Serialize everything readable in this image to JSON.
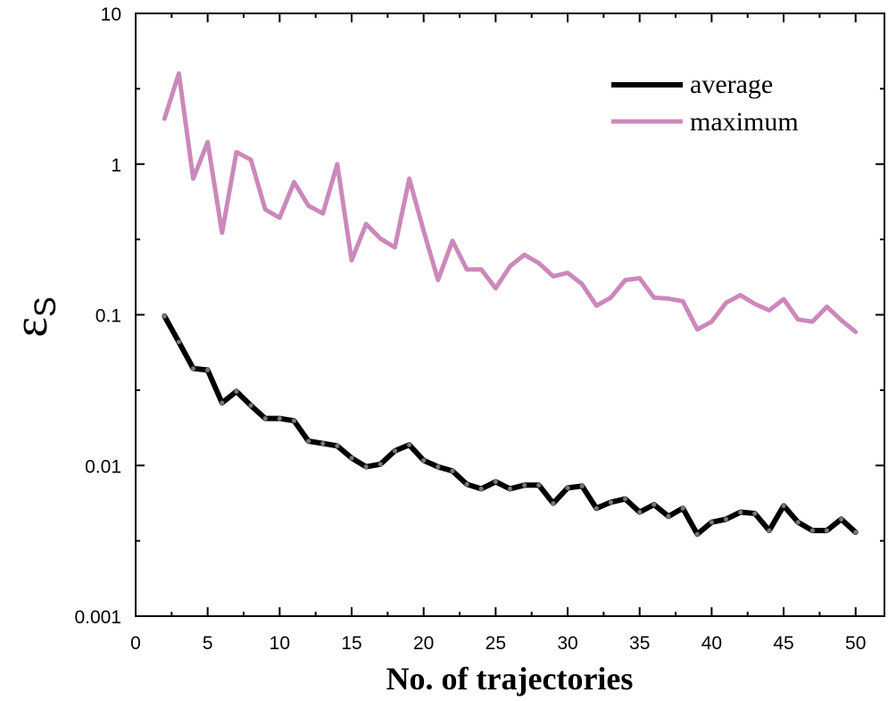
{
  "chart_data": {
    "type": "line",
    "title": "",
    "xlabel": "No. of trajectories",
    "ylabel": {
      "main": "ε",
      "sub": "S"
    },
    "xlim": [
      0,
      52
    ],
    "ylim": [
      0.001,
      10
    ],
    "yscale": "log",
    "x_ticks": [
      0,
      5,
      10,
      15,
      20,
      25,
      30,
      35,
      40,
      45,
      50
    ],
    "x_tick_labels": [
      "0",
      "5",
      "10",
      "15",
      "20",
      "25",
      "30",
      "35",
      "40",
      "45",
      "50"
    ],
    "y_ticks": [
      0.001,
      0.01,
      0.1,
      1,
      10
    ],
    "y_tick_labels": [
      "0.001",
      "0.01",
      "0.1",
      "1",
      "10"
    ],
    "legend_position": "top-right",
    "x": [
      2,
      3,
      4,
      5,
      6,
      7,
      8,
      9,
      10,
      11,
      12,
      13,
      14,
      15,
      16,
      17,
      18,
      19,
      20,
      21,
      22,
      23,
      24,
      25,
      26,
      27,
      28,
      29,
      30,
      31,
      32,
      33,
      34,
      35,
      36,
      37,
      38,
      39,
      40,
      41,
      42,
      43,
      44,
      45,
      46,
      47,
      48,
      49,
      50
    ],
    "series": [
      {
        "name": "average",
        "color": "#000000",
        "values": [
          0.098,
          0.066,
          0.044,
          0.043,
          0.026,
          0.031,
          0.025,
          0.0205,
          0.0205,
          0.0198,
          0.0145,
          0.014,
          0.0135,
          0.0112,
          0.0098,
          0.0102,
          0.0125,
          0.0137,
          0.0108,
          0.0098,
          0.0092,
          0.0075,
          0.007,
          0.0078,
          0.007,
          0.0074,
          0.0074,
          0.0056,
          0.0071,
          0.0073,
          0.0052,
          0.0057,
          0.006,
          0.0049,
          0.0055,
          0.0046,
          0.0052,
          0.0035,
          0.0042,
          0.0044,
          0.0049,
          0.0048,
          0.0037,
          0.0054,
          0.0042,
          0.0037,
          0.0037,
          0.0044,
          0.0036
        ]
      },
      {
        "name": "maximum",
        "color": "#cc88bb",
        "values": [
          2.0,
          4.0,
          0.8,
          1.4,
          0.35,
          1.2,
          1.07,
          0.5,
          0.44,
          0.76,
          0.53,
          0.47,
          1.0,
          0.23,
          0.4,
          0.32,
          0.28,
          0.8,
          0.36,
          0.17,
          0.31,
          0.2,
          0.2,
          0.15,
          0.21,
          0.25,
          0.22,
          0.18,
          0.19,
          0.16,
          0.115,
          0.13,
          0.17,
          0.175,
          0.13,
          0.128,
          0.123,
          0.08,
          0.09,
          0.12,
          0.135,
          0.118,
          0.107,
          0.127,
          0.093,
          0.09,
          0.113,
          0.092,
          0.077
        ]
      }
    ]
  }
}
